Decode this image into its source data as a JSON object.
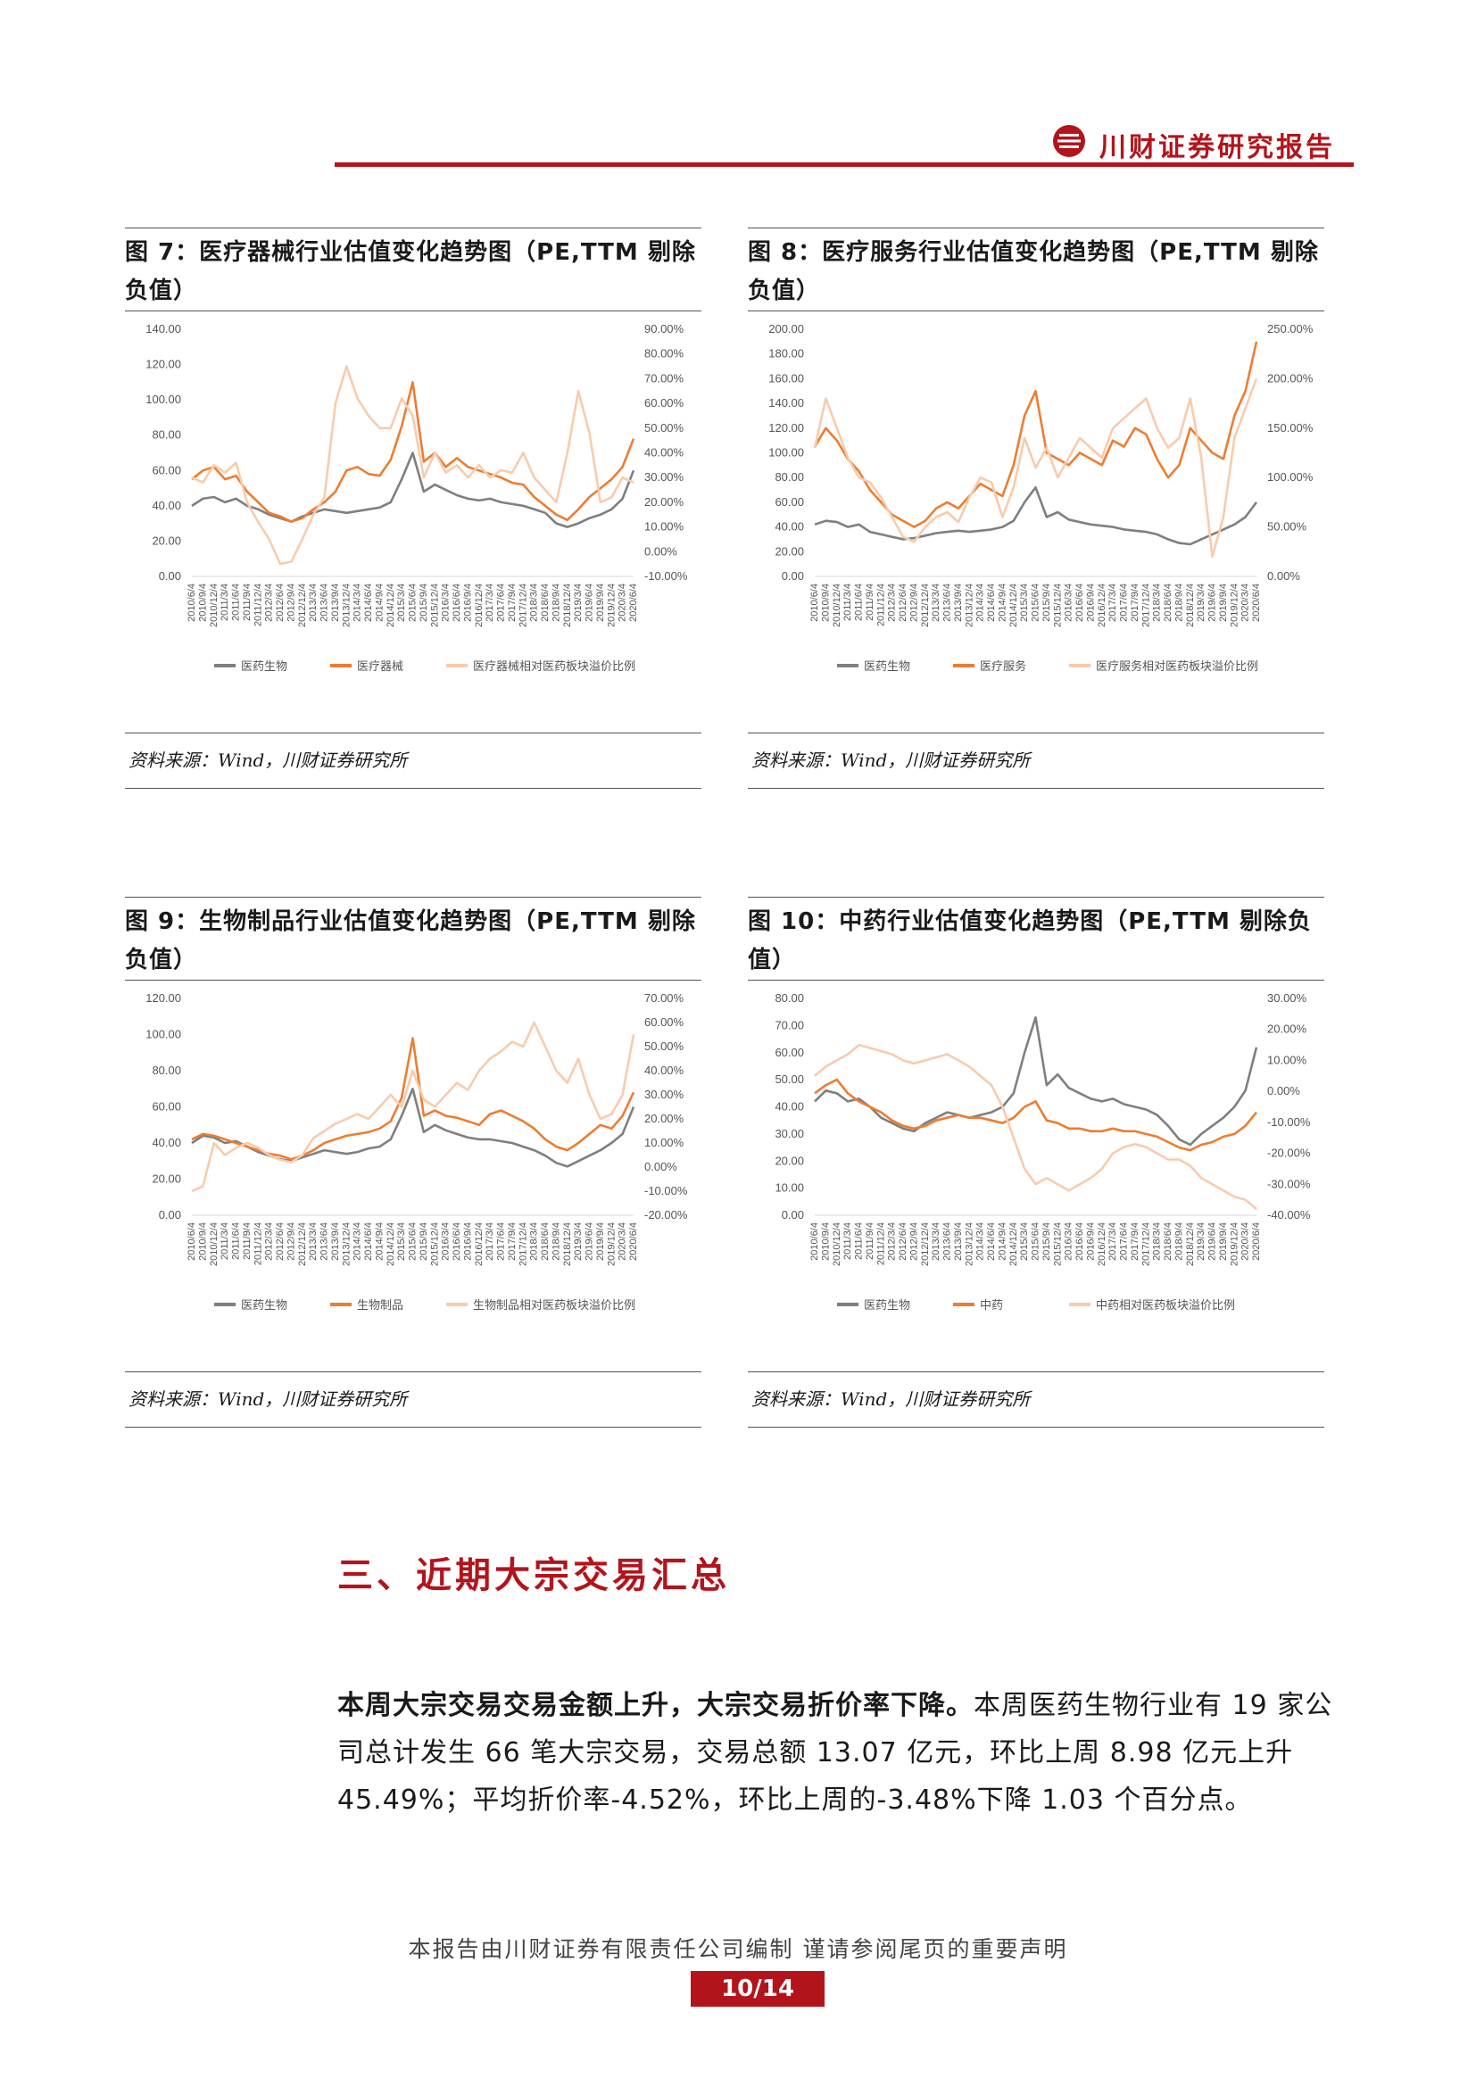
{
  "header": {
    "brand": "川财证券研究报告"
  },
  "figures": [
    {
      "title": "图 7：医疗器械行业估值变化趋势图（PE,TTM 剔除负值）",
      "source": "资料来源：Wind，川财证券研究所",
      "chart_data": {
        "type": "line",
        "x_labels": [
          "2010/6/4",
          "2010/9/4",
          "2010/12/4",
          "2011/3/4",
          "2011/6/4",
          "2011/9/4",
          "2011/12/4",
          "2012/3/4",
          "2012/6/4",
          "2012/9/4",
          "2012/12/4",
          "2013/3/4",
          "2013/6/4",
          "2013/9/4",
          "2013/12/4",
          "2014/3/4",
          "2014/6/4",
          "2014/9/4",
          "2014/12/4",
          "2015/3/4",
          "2015/6/4",
          "2015/9/4",
          "2015/12/4",
          "2016/3/4",
          "2016/6/4",
          "2016/9/4",
          "2016/12/4",
          "2017/3/4",
          "2017/6/4",
          "2017/9/4",
          "2017/12/4",
          "2018/3/4",
          "2018/6/4",
          "2018/9/4",
          "2018/12/4",
          "2019/3/4",
          "2019/6/4",
          "2019/9/4",
          "2019/12/4",
          "2020/3/4",
          "2020/6/4"
        ],
        "y_left_ticks": [
          "0.00",
          "20.00",
          "40.00",
          "60.00",
          "80.00",
          "100.00",
          "120.00",
          "140.00"
        ],
        "y_right_ticks": [
          "-10.00%",
          "0.00%",
          "10.00%",
          "20.00%",
          "30.00%",
          "40.00%",
          "50.00%",
          "60.00%",
          "70.00%",
          "80.00%",
          "90.00%"
        ],
        "ylim_left": [
          0,
          140
        ],
        "ylim_right": [
          -10,
          90
        ],
        "series": [
          {
            "name": "医药生物",
            "axis": "left",
            "color": "#7f7f7f",
            "values": [
              40,
              44,
              45,
              42,
              44,
              40,
              38,
              35,
              33,
              31,
              34,
              36,
              38,
              37,
              36,
              37,
              38,
              39,
              42,
              55,
              70,
              48,
              52,
              49,
              46,
              44,
              43,
              44,
              42,
              41,
              40,
              38,
              36,
              30,
              28,
              30,
              33,
              35,
              38,
              44,
              60
            ]
          },
          {
            "name": "医疗器械",
            "axis": "left",
            "color": "#ed7d31",
            "values": [
              55,
              60,
              62,
              55,
              57,
              48,
              42,
              36,
              34,
              31,
              33,
              38,
              42,
              48,
              60,
              62,
              58,
              57,
              66,
              85,
              110,
              65,
              70,
              62,
              67,
              62,
              60,
              58,
              56,
              53,
              52,
              45,
              40,
              35,
              32,
              38,
              45,
              50,
              55,
              62,
              78
            ]
          },
          {
            "name": "医疗器械相对医药板块溢价比例",
            "axis": "right",
            "color": "#f8cbad",
            "values": [
              30,
              28,
              35,
              32,
              36,
              20,
              12,
              5,
              -5,
              -4,
              5,
              15,
              22,
              60,
              75,
              62,
              55,
              50,
              50,
              62,
              55,
              30,
              40,
              32,
              35,
              30,
              35,
              30,
              33,
              32,
              40,
              30,
              25,
              20,
              40,
              65,
              48,
              20,
              22,
              30,
              28
            ]
          }
        ]
      }
    },
    {
      "title": "图 8：医疗服务行业估值变化趋势图（PE,TTM 剔除负值）",
      "source": "资料来源：Wind，川财证券研究所",
      "chart_data": {
        "type": "line",
        "x_labels": [
          "2010/6/4",
          "2010/9/4",
          "2010/12/4",
          "2011/3/4",
          "2011/6/4",
          "2011/9/4",
          "2011/12/4",
          "2012/3/4",
          "2012/6/4",
          "2012/9/4",
          "2012/12/4",
          "2013/3/4",
          "2013/6/4",
          "2013/9/4",
          "2013/12/4",
          "2014/3/4",
          "2014/6/4",
          "2014/9/4",
          "2014/12/4",
          "2015/3/4",
          "2015/6/4",
          "2015/9/4",
          "2015/12/4",
          "2016/3/4",
          "2016/6/4",
          "2016/9/4",
          "2016/12/4",
          "2017/3/4",
          "2017/6/4",
          "2017/9/4",
          "2017/12/4",
          "2018/3/4",
          "2018/6/4",
          "2018/9/4",
          "2018/12/4",
          "2019/3/4",
          "2019/6/4",
          "2019/9/4",
          "2019/12/4",
          "2020/3/4",
          "2020/6/4"
        ],
        "y_left_ticks": [
          "0.00",
          "20.00",
          "40.00",
          "60.00",
          "80.00",
          "100.00",
          "120.00",
          "140.00",
          "160.00",
          "180.00",
          "200.00"
        ],
        "y_right_ticks": [
          "0.00%",
          "50.00%",
          "100.00%",
          "150.00%",
          "200.00%",
          "250.00%"
        ],
        "ylim_left": [
          0,
          200
        ],
        "ylim_right": [
          0,
          250
        ],
        "series": [
          {
            "name": "医药生物",
            "axis": "left",
            "color": "#7f7f7f",
            "values": [
              42,
              45,
              44,
              40,
              42,
              36,
              34,
              32,
              30,
              31,
              33,
              35,
              36,
              37,
              36,
              37,
              38,
              40,
              45,
              60,
              72,
              48,
              52,
              46,
              44,
              42,
              41,
              40,
              38,
              37,
              36,
              34,
              30,
              27,
              26,
              30,
              34,
              38,
              42,
              48,
              60
            ]
          },
          {
            "name": "医疗服务",
            "axis": "left",
            "color": "#ed7d31",
            "values": [
              105,
              120,
              110,
              95,
              85,
              70,
              60,
              50,
              45,
              40,
              45,
              55,
              60,
              55,
              65,
              75,
              70,
              65,
              90,
              130,
              150,
              100,
              95,
              90,
              100,
              95,
              90,
              110,
              105,
              120,
              115,
              95,
              80,
              90,
              120,
              110,
              100,
              95,
              130,
              150,
              190
            ]
          },
          {
            "name": "医疗服务相对医药板块溢价比例",
            "axis": "right",
            "color": "#f8cbad",
            "values": [
              130,
              180,
              150,
              120,
              100,
              95,
              80,
              60,
              40,
              35,
              50,
              60,
              65,
              55,
              80,
              100,
              95,
              60,
              90,
              140,
              110,
              130,
              100,
              120,
              140,
              130,
              120,
              150,
              160,
              170,
              180,
              150,
              130,
              140,
              180,
              120,
              20,
              60,
              140,
              170,
              200
            ]
          }
        ]
      }
    },
    {
      "title": "图 9：生物制品行业估值变化趋势图（PE,TTM 剔除负值）",
      "source": "资料来源：Wind，川财证券研究所",
      "chart_data": {
        "type": "line",
        "x_labels": [
          "2010/6/4",
          "2010/9/4",
          "2010/12/4",
          "2011/3/4",
          "2011/6/4",
          "2011/9/4",
          "2011/12/4",
          "2012/3/4",
          "2012/6/4",
          "2012/9/4",
          "2012/12/4",
          "2013/3/4",
          "2013/6/4",
          "2013/9/4",
          "2013/12/4",
          "2014/3/4",
          "2014/6/4",
          "2014/9/4",
          "2014/12/4",
          "2015/3/4",
          "2015/6/4",
          "2015/9/4",
          "2015/12/4",
          "2016/3/4",
          "2016/6/4",
          "2016/9/4",
          "2016/12/4",
          "2017/3/4",
          "2017/6/4",
          "2017/9/4",
          "2017/12/4",
          "2018/3/4",
          "2018/6/4",
          "2018/9/4",
          "2018/12/4",
          "2019/3/4",
          "2019/6/4",
          "2019/9/4",
          "2019/12/4",
          "2020/3/4",
          "2020/6/4"
        ],
        "y_left_ticks": [
          "0.00",
          "20.00",
          "40.00",
          "60.00",
          "80.00",
          "100.00",
          "120.00"
        ],
        "y_right_ticks": [
          "-20.00%",
          "-10.00%",
          "0.00%",
          "10.00%",
          "20.00%",
          "30.00%",
          "40.00%",
          "50.00%",
          "60.00%",
          "70.00%"
        ],
        "ylim_left": [
          0,
          120
        ],
        "ylim_right": [
          -20,
          70
        ],
        "series": [
          {
            "name": "医药生物",
            "axis": "left",
            "color": "#7f7f7f",
            "values": [
              40,
              44,
              43,
              40,
              41,
              38,
              35,
              33,
              31,
              30,
              32,
              34,
              36,
              35,
              34,
              35,
              37,
              38,
              42,
              55,
              70,
              46,
              50,
              47,
              45,
              43,
              42,
              42,
              41,
              40,
              38,
              36,
              33,
              29,
              27,
              30,
              33,
              36,
              40,
              45,
              60
            ]
          },
          {
            "name": "生物制品",
            "axis": "left",
            "color": "#ed7d31",
            "values": [
              42,
              45,
              44,
              42,
              40,
              38,
              36,
              34,
              33,
              31,
              33,
              36,
              40,
              42,
              44,
              45,
              46,
              48,
              52,
              65,
              98,
              55,
              58,
              55,
              54,
              52,
              50,
              56,
              58,
              55,
              52,
              48,
              42,
              38,
              36,
              40,
              45,
              50,
              48,
              55,
              68
            ]
          },
          {
            "name": "生物制品相对医药板块溢价比例",
            "axis": "right",
            "color": "#f8cbad",
            "values": [
              -10,
              -8,
              10,
              5,
              8,
              10,
              8,
              5,
              3,
              2,
              5,
              12,
              15,
              18,
              20,
              22,
              20,
              25,
              30,
              25,
              40,
              28,
              25,
              30,
              35,
              32,
              40,
              45,
              48,
              52,
              50,
              60,
              50,
              40,
              35,
              45,
              30,
              20,
              22,
              30,
              55
            ]
          }
        ]
      }
    },
    {
      "title": "图 10：中药行业估值变化趋势图（PE,TTM 剔除负值）",
      "source": "资料来源：Wind，川财证券研究所",
      "chart_data": {
        "type": "line",
        "x_labels": [
          "2010/6/4",
          "2010/9/4",
          "2010/12/4",
          "2011/3/4",
          "2011/6/4",
          "2011/9/4",
          "2011/12/4",
          "2012/3/4",
          "2012/6/4",
          "2012/9/4",
          "2012/12/4",
          "2013/3/4",
          "2013/6/4",
          "2013/9/4",
          "2013/12/4",
          "2014/3/4",
          "2014/6/4",
          "2014/9/4",
          "2014/12/4",
          "2015/3/4",
          "2015/6/4",
          "2015/9/4",
          "2015/12/4",
          "2016/3/4",
          "2016/6/4",
          "2016/9/4",
          "2016/12/4",
          "2017/3/4",
          "2017/6/4",
          "2017/9/4",
          "2017/12/4",
          "2018/3/4",
          "2018/6/4",
          "2018/9/4",
          "2018/12/4",
          "2019/3/4",
          "2019/6/4",
          "2019/9/4",
          "2019/12/4",
          "2020/3/4",
          "2020/6/4"
        ],
        "y_left_ticks": [
          "0.00",
          "10.00",
          "20.00",
          "30.00",
          "40.00",
          "50.00",
          "60.00",
          "70.00",
          "80.00"
        ],
        "y_right_ticks": [
          "-40.00%",
          "-30.00%",
          "-20.00%",
          "-10.00%",
          "0.00%",
          "10.00%",
          "20.00%",
          "30.00%"
        ],
        "ylim_left": [
          0,
          80
        ],
        "ylim_right": [
          -40,
          30
        ],
        "series": [
          {
            "name": "医药生物",
            "axis": "left",
            "color": "#7f7f7f",
            "values": [
              42,
              46,
              45,
              42,
              43,
              40,
              36,
              34,
              32,
              31,
              34,
              36,
              38,
              37,
              36,
              37,
              38,
              40,
              45,
              60,
              73,
              48,
              52,
              47,
              45,
              43,
              42,
              43,
              41,
              40,
              39,
              37,
              33,
              28,
              26,
              30,
              33,
              36,
              40,
              46,
              62
            ]
          },
          {
            "name": "中药",
            "axis": "left",
            "color": "#ed7d31",
            "values": [
              45,
              48,
              50,
              45,
              42,
              40,
              38,
              35,
              33,
              32,
              33,
              35,
              36,
              37,
              36,
              36,
              35,
              34,
              36,
              40,
              42,
              35,
              34,
              32,
              32,
              31,
              31,
              32,
              31,
              31,
              30,
              29,
              27,
              25,
              24,
              26,
              27,
              29,
              30,
              33,
              38
            ]
          },
          {
            "name": "中药相对医药板块溢价比例",
            "axis": "right",
            "color": "#f8cbad",
            "values": [
              5,
              8,
              10,
              12,
              15,
              14,
              13,
              12,
              10,
              9,
              10,
              11,
              12,
              10,
              8,
              5,
              2,
              -5,
              -15,
              -25,
              -30,
              -28,
              -30,
              -32,
              -30,
              -28,
              -25,
              -20,
              -18,
              -17,
              -18,
              -20,
              -22,
              -22,
              -24,
              -28,
              -30,
              -32,
              -34,
              -35,
              -38
            ]
          }
        ]
      }
    }
  ],
  "section_title": "三、近期大宗交易汇总",
  "paragraph": {
    "bold": "本周大宗交易交易金额上升，大宗交易折价率下降。",
    "text": "本周医药生物行业有 19 家公司总计发生 66 笔大宗交易，交易总额 13.07 亿元，环比上周 8.98 亿元上升 45.49%；平均折价率-4.52%，环比上周的-3.48%下降 1.03 个百分点。"
  },
  "footer": {
    "disclaimer": "本报告由川财证券有限责任公司编制 谨请参阅尾页的重要声明",
    "page": "10/14"
  }
}
